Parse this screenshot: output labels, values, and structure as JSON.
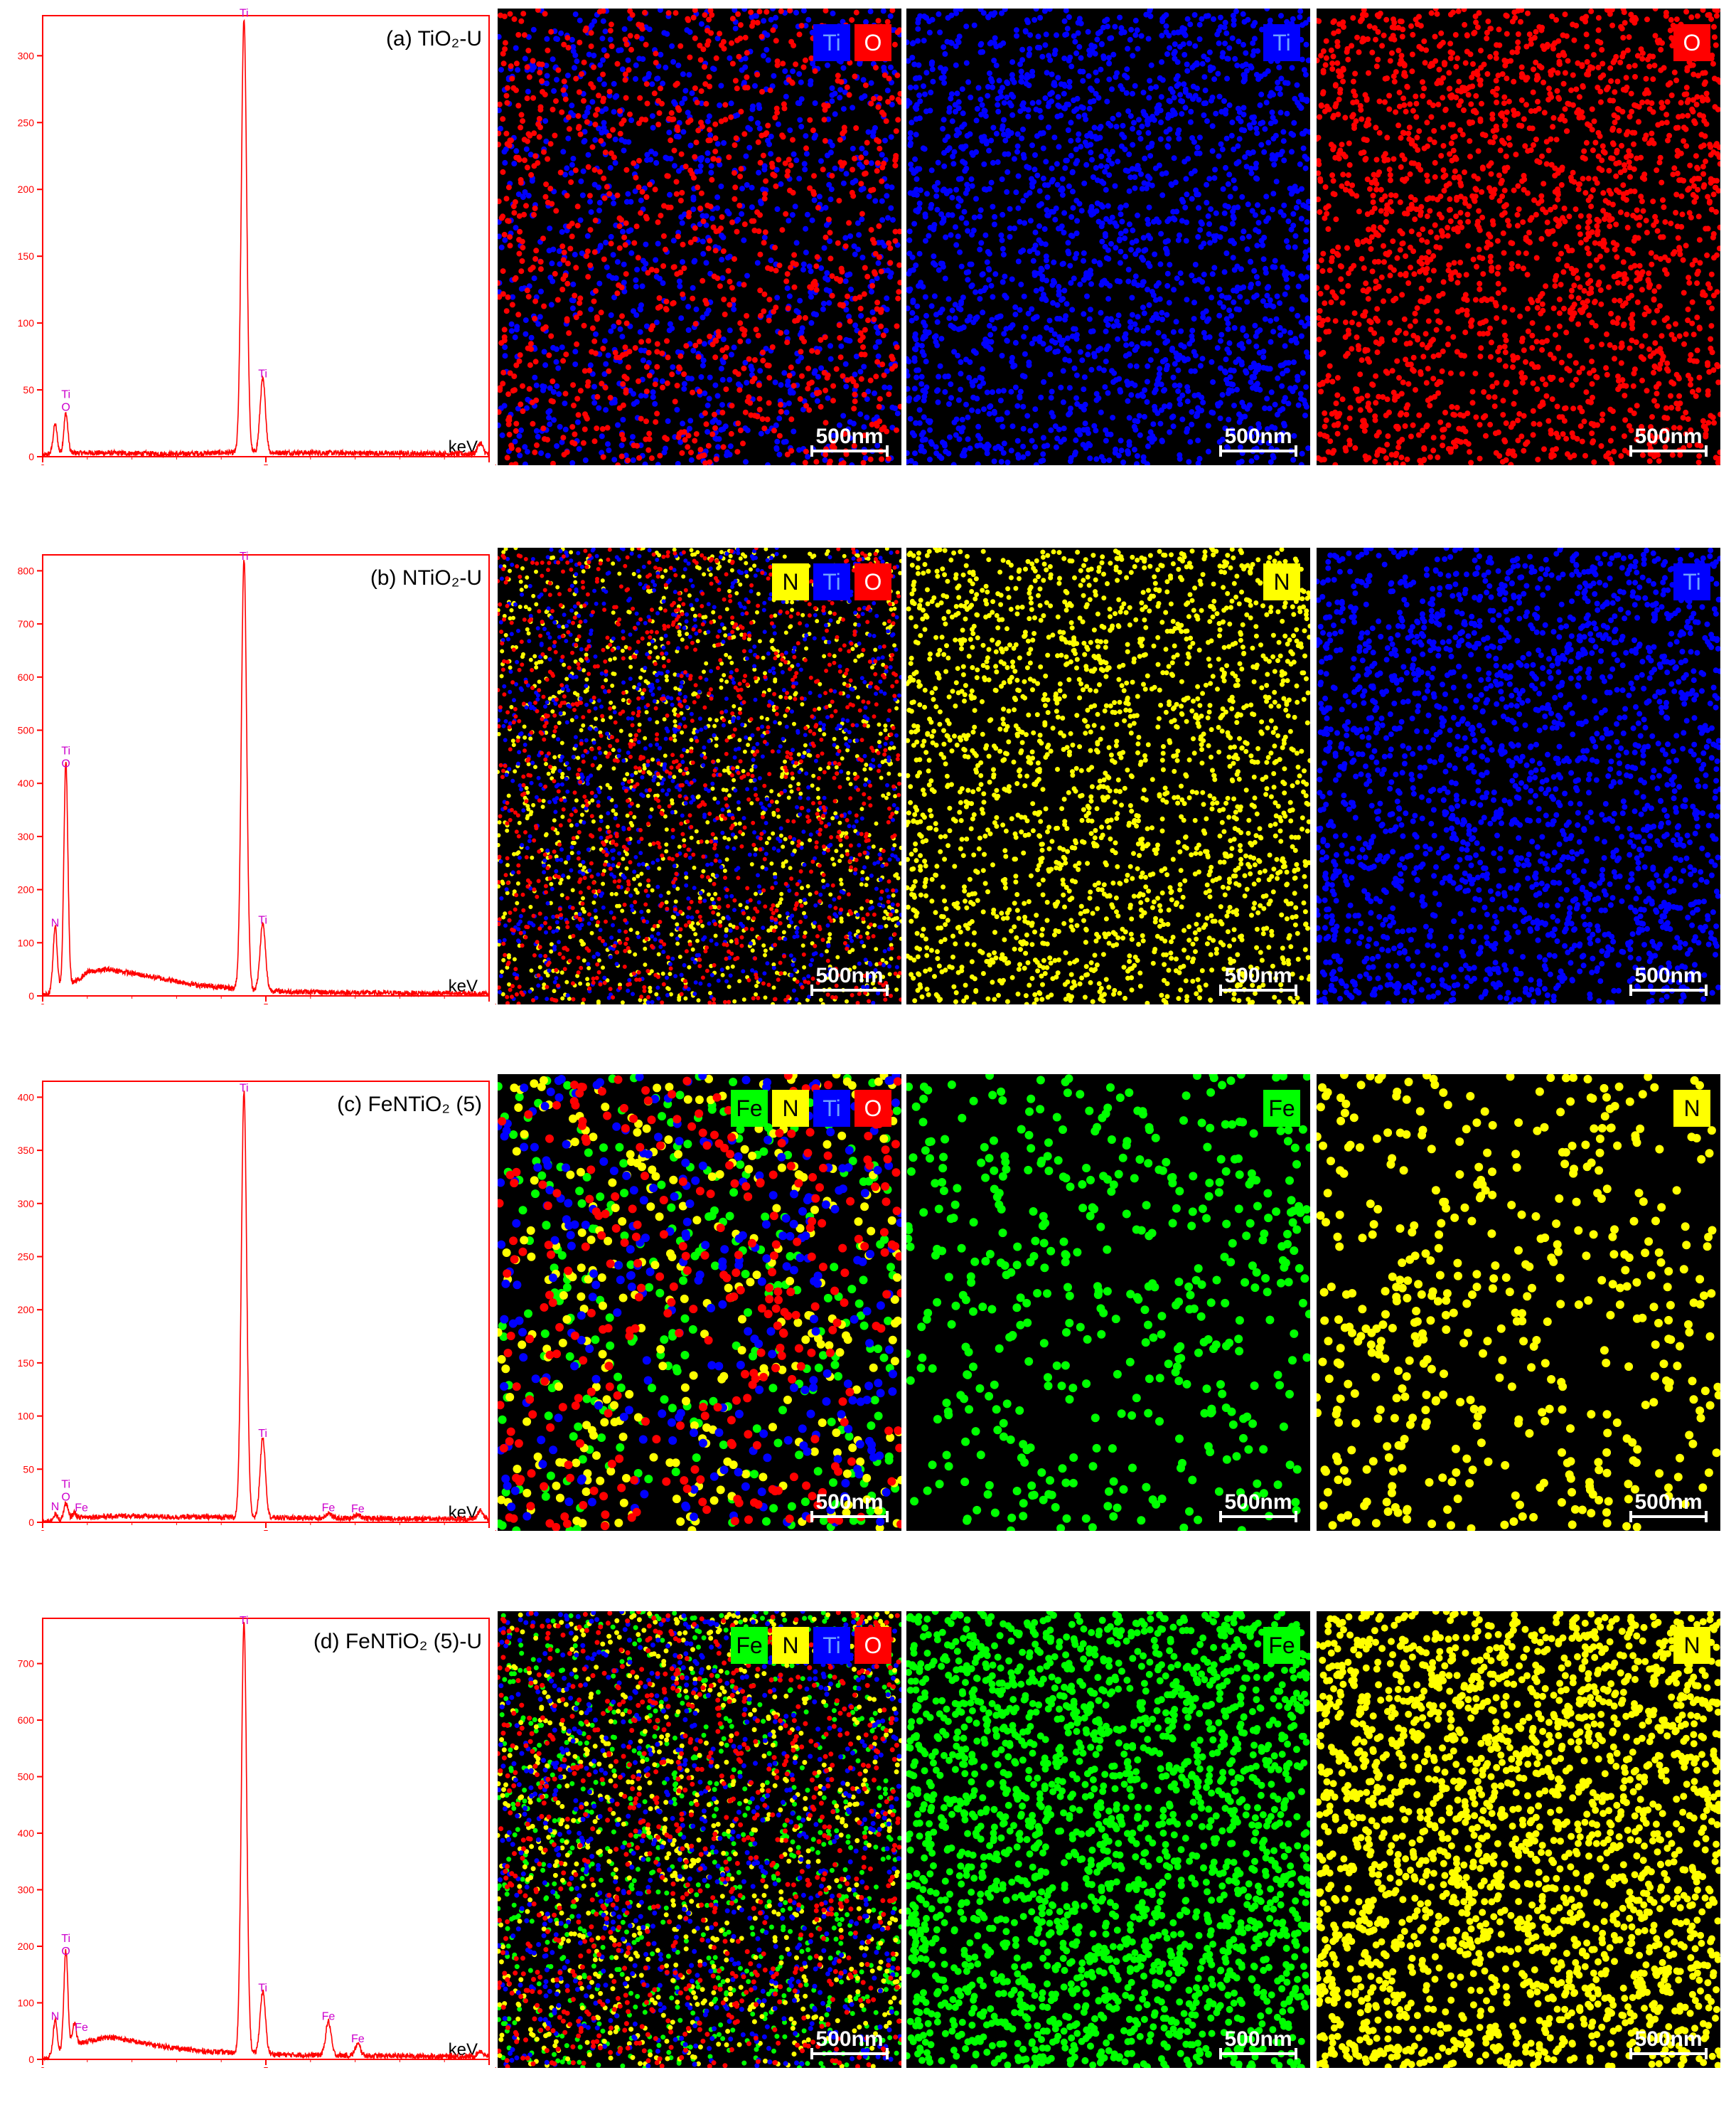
{
  "colors": {
    "Ti": "#0000ff",
    "O": "#ff0000",
    "N": "#ffff00",
    "Fe": "#00ff00",
    "spectrum_line": "#ff0000",
    "peak_label": "#cc00cc",
    "map_background": "#000000"
  },
  "scale_bar_label": "500nm",
  "chart_data": [
    {
      "type": "line",
      "title": "(a) TiO₂-U",
      "xlabel": "keV",
      "xlim": [
        0,
        10
      ],
      "ylim": [
        0,
        330
      ],
      "yticks": [
        0,
        50,
        100,
        150,
        200,
        250,
        300
      ],
      "xticks": [
        0,
        5,
        10
      ],
      "peaks": [
        {
          "x": 0.28,
          "y": 22
        },
        {
          "x": 0.52,
          "y": 30,
          "labels": [
            "Ti",
            "O"
          ]
        },
        {
          "x": 4.51,
          "y": 325,
          "labels": [
            "Ti"
          ]
        },
        {
          "x": 4.93,
          "y": 55,
          "labels": [
            "Ti"
          ]
        },
        {
          "x": 9.8,
          "y": 8
        }
      ],
      "background": [
        [
          0.1,
          2
        ],
        [
          1.0,
          3
        ],
        [
          3.0,
          2
        ],
        [
          4.0,
          3
        ],
        [
          6.0,
          3
        ],
        [
          10.0,
          2
        ]
      ]
    },
    {
      "type": "line",
      "title": "(b) NTiO₂-U",
      "xlabel": "keV",
      "xlim": [
        0,
        10
      ],
      "ylim": [
        0,
        830
      ],
      "yticks": [
        0,
        100,
        200,
        300,
        400,
        500,
        600,
        700,
        800
      ],
      "xticks": [
        0,
        5,
        10
      ],
      "peaks": [
        {
          "x": 0.28,
          "y": 120,
          "labels": [
            "N"
          ]
        },
        {
          "x": 0.52,
          "y": 420,
          "labels": [
            "Ti",
            "O"
          ]
        },
        {
          "x": 4.51,
          "y": 810,
          "labels": [
            "Ti"
          ]
        },
        {
          "x": 4.93,
          "y": 125,
          "labels": [
            "Ti"
          ]
        }
      ],
      "background": [
        [
          0.8,
          30
        ],
        [
          1.0,
          45
        ],
        [
          1.5,
          50
        ],
        [
          2.5,
          35
        ],
        [
          3.5,
          20
        ],
        [
          4.2,
          15
        ],
        [
          5.5,
          8
        ],
        [
          7.0,
          6
        ],
        [
          10.0,
          4
        ]
      ]
    },
    {
      "type": "line",
      "title": "(c) FeNTiO₂ (5)",
      "xlabel": "keV",
      "xlim": [
        0,
        10
      ],
      "ylim": [
        0,
        415
      ],
      "yticks": [
        0,
        50,
        100,
        150,
        200,
        250,
        300,
        350,
        400
      ],
      "xticks": [
        0,
        5,
        10
      ],
      "peaks": [
        {
          "x": 0.28,
          "y": 6,
          "labels": [
            "N"
          ]
        },
        {
          "x": 0.52,
          "y": 15,
          "labels": [
            "Ti",
            "O"
          ]
        },
        {
          "x": 0.71,
          "y": 5,
          "labels": [
            "Fe"
          ]
        },
        {
          "x": 4.51,
          "y": 400,
          "labels": [
            "Ti"
          ]
        },
        {
          "x": 4.93,
          "y": 75,
          "labels": [
            "Ti"
          ]
        },
        {
          "x": 6.4,
          "y": 5,
          "labels": [
            "Fe"
          ]
        },
        {
          "x": 7.06,
          "y": 4,
          "labels": [
            "Fe"
          ]
        },
        {
          "x": 9.8,
          "y": 8
        }
      ],
      "background": [
        [
          0.9,
          5
        ],
        [
          2.0,
          6
        ],
        [
          3.0,
          5
        ],
        [
          4.0,
          5
        ],
        [
          6.0,
          4
        ],
        [
          10.0,
          3
        ]
      ]
    },
    {
      "type": "line",
      "title": "(d) FeNTiO₂ (5)-U",
      "xlabel": "keV",
      "xlim": [
        0,
        10
      ],
      "ylim": [
        0,
        780
      ],
      "yticks": [
        0,
        100,
        200,
        300,
        400,
        500,
        600,
        700
      ],
      "xticks": [
        0,
        5,
        10
      ],
      "peaks": [
        {
          "x": 0.28,
          "y": 60,
          "labels": [
            "N"
          ]
        },
        {
          "x": 0.52,
          "y": 175,
          "labels": [
            "Ti",
            "O"
          ]
        },
        {
          "x": 0.71,
          "y": 40,
          "labels": [
            "Fe"
          ]
        },
        {
          "x": 4.51,
          "y": 760,
          "labels": [
            "Ti"
          ]
        },
        {
          "x": 4.93,
          "y": 110,
          "labels": [
            "Ti"
          ]
        },
        {
          "x": 6.4,
          "y": 60,
          "labels": [
            "Fe"
          ]
        },
        {
          "x": 7.06,
          "y": 20,
          "labels": [
            "Fe"
          ]
        },
        {
          "x": 9.8,
          "y": 10
        }
      ],
      "background": [
        [
          0.9,
          30
        ],
        [
          1.5,
          40
        ],
        [
          2.5,
          25
        ],
        [
          3.5,
          15
        ],
        [
          4.2,
          12
        ],
        [
          5.5,
          8
        ],
        [
          8.0,
          6
        ],
        [
          10.0,
          5
        ]
      ]
    }
  ],
  "maps": [
    [
      {
        "elements": [
          "Ti",
          "O"
        ]
      },
      {
        "elements": [
          "Ti"
        ]
      },
      {
        "elements": [
          "O"
        ]
      }
    ],
    [
      {
        "elements": [
          "N",
          "Ti",
          "O"
        ]
      },
      {
        "elements": [
          "N"
        ]
      },
      {
        "elements": [
          "Ti"
        ]
      }
    ],
    [
      {
        "elements": [
          "Fe",
          "N",
          "Ti",
          "O"
        ]
      },
      {
        "elements": [
          "Fe"
        ]
      },
      {
        "elements": [
          "N"
        ]
      }
    ],
    [
      {
        "elements": [
          "Fe",
          "N",
          "Ti",
          "O"
        ]
      },
      {
        "elements": [
          "Fe"
        ]
      },
      {
        "elements": [
          "N"
        ]
      }
    ]
  ]
}
